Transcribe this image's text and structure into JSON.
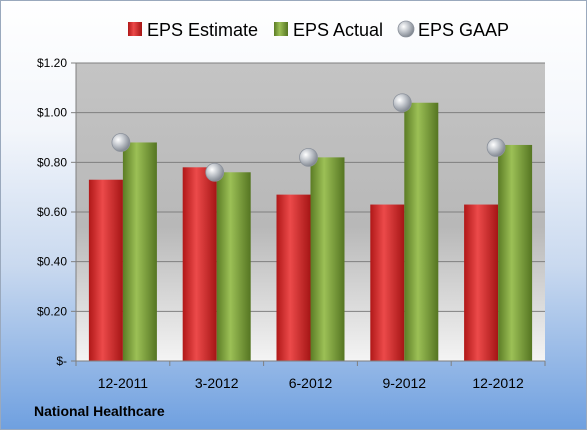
{
  "chart_data": {
    "type": "bar",
    "categories": [
      "12-2011",
      "3-2012",
      "6-2012",
      "9-2012",
      "12-2012"
    ],
    "series": [
      {
        "name": "EPS Estimate",
        "values": [
          0.73,
          0.78,
          0.67,
          0.63,
          0.63
        ],
        "color": "#d42b2b"
      },
      {
        "name": "EPS Actual",
        "values": [
          0.88,
          0.76,
          0.82,
          1.04,
          0.87
        ],
        "color": "#7a9c3a"
      },
      {
        "name": "EPS GAAP",
        "values": [
          0.88,
          0.76,
          0.82,
          1.04,
          0.86
        ],
        "color": "#a0a8b4",
        "marker": "circle"
      }
    ],
    "ylim": [
      0,
      1.2
    ],
    "yticks": [
      0,
      0.2,
      0.4,
      0.6,
      0.8,
      1.0,
      1.2
    ],
    "ytick_labels": [
      "$-",
      "$0.20",
      "$0.40",
      "$0.60",
      "$0.80",
      "$1.00",
      "$1.20"
    ],
    "grid": true,
    "legend_position": "top"
  },
  "company_name": "National Healthcare"
}
